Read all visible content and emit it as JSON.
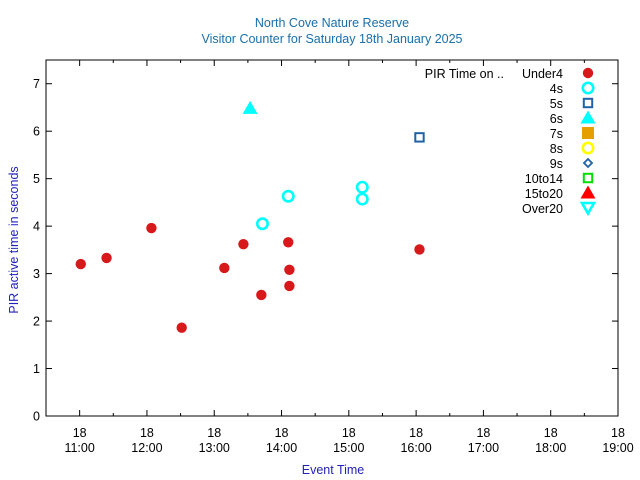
{
  "chart_data": {
    "type": "scatter",
    "title": "North Cove Nature Reserve",
    "subtitle": "Visitor Counter for Saturday 18th January 2025",
    "xlabel": "Event Time",
    "ylabel": "PIR active time in seconds",
    "xlim": [
      "10:30",
      "19:00"
    ],
    "ylim": [
      0,
      7.5
    ],
    "yticks": [
      0,
      1,
      2,
      3,
      4,
      5,
      6,
      7
    ],
    "xticks": [
      {
        "day": "18",
        "time": "11:00"
      },
      {
        "day": "18",
        "time": "12:00"
      },
      {
        "day": "18",
        "time": "13:00"
      },
      {
        "day": "18",
        "time": "14:00"
      },
      {
        "day": "18",
        "time": "15:00"
      },
      {
        "day": "18",
        "time": "16:00"
      },
      {
        "day": "18",
        "time": "17:00"
      },
      {
        "day": "18",
        "time": "18:00"
      },
      {
        "day": "18",
        "time": "19:00"
      }
    ],
    "grid": false,
    "legend_placement": "top-right",
    "legend_title": "PIR Time on ..",
    "series": [
      {
        "name": "Under4",
        "marker": "filled-circle",
        "color": "#d7191c",
        "points": [
          {
            "x": "11:01",
            "y": 3.2
          },
          {
            "x": "11:24",
            "y": 3.33
          },
          {
            "x": "12:04",
            "y": 3.96
          },
          {
            "x": "12:31",
            "y": 1.86
          },
          {
            "x": "13:09",
            "y": 3.12
          },
          {
            "x": "13:26",
            "y": 3.62
          },
          {
            "x": "13:42",
            "y": 2.55
          },
          {
            "x": "14:06",
            "y": 3.66
          },
          {
            "x": "14:07",
            "y": 3.08
          },
          {
            "x": "14:07",
            "y": 2.74
          },
          {
            "x": "16:03",
            "y": 3.51
          }
        ]
      },
      {
        "name": "4s",
        "marker": "open-circle",
        "color": "#00ffff",
        "points": [
          {
            "x": "13:43",
            "y": 4.05
          },
          {
            "x": "14:06",
            "y": 4.63
          },
          {
            "x": "15:12",
            "y": 4.82
          },
          {
            "x": "15:12",
            "y": 4.57
          }
        ]
      },
      {
        "name": "5s",
        "marker": "open-square",
        "color": "#1f62a8",
        "points": [
          {
            "x": "16:03",
            "y": 5.87
          }
        ]
      },
      {
        "name": "6s",
        "marker": "filled-triangle",
        "color": "#00ffff",
        "points": [
          {
            "x": "13:32",
            "y": 6.48
          }
        ]
      },
      {
        "name": "7s",
        "marker": "filled-square",
        "color": "#e69f00",
        "points": []
      },
      {
        "name": "8s",
        "marker": "open-circle",
        "color": "#ffff00",
        "points": []
      },
      {
        "name": "9s",
        "marker": "open-diamond",
        "color": "#1f62a8",
        "points": []
      },
      {
        "name": "10to14",
        "marker": "open-square",
        "color": "#00e000",
        "points": []
      },
      {
        "name": "15to20",
        "marker": "filled-triangle",
        "color": "#ff0000",
        "points": []
      },
      {
        "name": "Over20",
        "marker": "open-triangle-down",
        "color": "#00ffff",
        "points": []
      }
    ]
  }
}
